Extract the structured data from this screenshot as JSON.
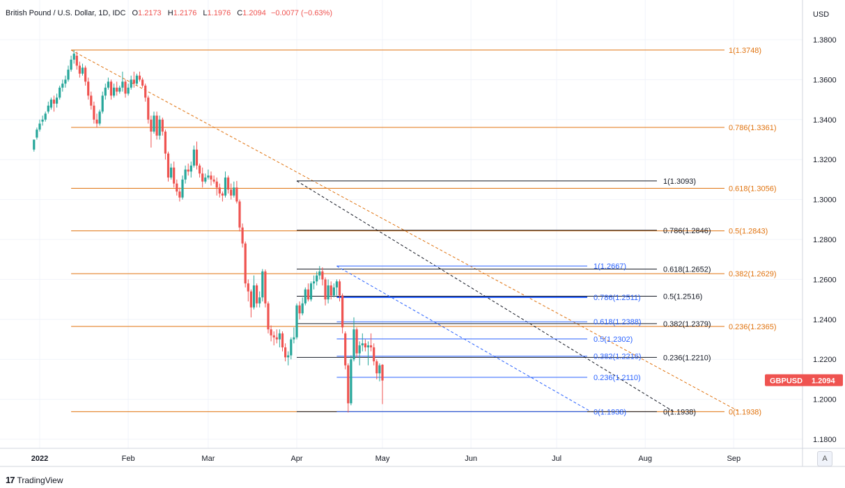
{
  "legend": {
    "symbol": "British Pound / U.S. Dollar, 1D, IDC",
    "o_label": "O",
    "o_value": "1.2173",
    "h_label": "H",
    "h_value": "1.2176",
    "l_label": "L",
    "l_value": "1.1976",
    "c_label": "C",
    "c_value": "1.2094",
    "change": "−0.0077 (−0.63%)"
  },
  "currency": "USD",
  "price_tag": {
    "symbol": "GBPUSD",
    "value": "1.2094"
  },
  "brand": "TradingView",
  "auto_button": "A",
  "colors": {
    "up": "#26a69a",
    "down": "#ef5350",
    "fib_orange": "#e0730f",
    "fib_blue": "#2962ff",
    "fib_black": "#131722",
    "tag": "#ef5350"
  },
  "chart_data": {
    "type": "candlestick",
    "ylim": [
      1.175,
      1.39
    ],
    "y_ticks": [
      "1.3800",
      "1.3600",
      "1.3400",
      "1.3200",
      "1.3000",
      "1.2800",
      "1.2600",
      "1.2400",
      "1.2200",
      "1.2000",
      "1.1800"
    ],
    "x_ticks": [
      {
        "label": "2022",
        "day": 3
      },
      {
        "label": "Feb",
        "day": 34
      },
      {
        "label": "Mar",
        "day": 62
      },
      {
        "label": "Apr",
        "day": 93
      },
      {
        "label": "May",
        "day": 123
      },
      {
        "label": "Jun",
        "day": 154
      },
      {
        "label": "Jul",
        "day": 184
      },
      {
        "label": "Aug",
        "day": 215
      },
      {
        "label": "Sep",
        "day": 246
      }
    ],
    "candles": [
      {
        "d": 1,
        "o": 1.325,
        "h": 1.328,
        "l": 1.324,
        "c": 1.33
      },
      {
        "d": 2,
        "o": 1.331,
        "h": 1.336,
        "l": 1.33,
        "c": 1.335
      },
      {
        "d": 3,
        "o": 1.335,
        "h": 1.34,
        "l": 1.334,
        "c": 1.338
      },
      {
        "d": 4,
        "o": 1.339,
        "h": 1.342,
        "l": 1.337,
        "c": 1.34
      },
      {
        "d": 5,
        "o": 1.34,
        "h": 1.344,
        "l": 1.339,
        "c": 1.343
      },
      {
        "d": 6,
        "o": 1.344,
        "h": 1.349,
        "l": 1.343,
        "c": 1.347
      },
      {
        "d": 7,
        "o": 1.346,
        "h": 1.351,
        "l": 1.345,
        "c": 1.35
      },
      {
        "d": 8,
        "o": 1.35,
        "h": 1.352,
        "l": 1.344,
        "c": 1.348
      },
      {
        "d": 9,
        "o": 1.348,
        "h": 1.353,
        "l": 1.346,
        "c": 1.351
      },
      {
        "d": 10,
        "o": 1.351,
        "h": 1.357,
        "l": 1.35,
        "c": 1.356
      },
      {
        "d": 11,
        "o": 1.356,
        "h": 1.36,
        "l": 1.354,
        "c": 1.358
      },
      {
        "d": 12,
        "o": 1.358,
        "h": 1.362,
        "l": 1.356,
        "c": 1.36
      },
      {
        "d": 13,
        "o": 1.36,
        "h": 1.367,
        "l": 1.359,
        "c": 1.365
      },
      {
        "d": 14,
        "o": 1.365,
        "h": 1.372,
        "l": 1.364,
        "c": 1.37
      },
      {
        "d": 15,
        "o": 1.37,
        "h": 1.3748,
        "l": 1.368,
        "c": 1.373
      },
      {
        "d": 16,
        "o": 1.372,
        "h": 1.374,
        "l": 1.365,
        "c": 1.367
      },
      {
        "d": 17,
        "o": 1.367,
        "h": 1.369,
        "l": 1.361,
        "c": 1.363
      },
      {
        "d": 18,
        "o": 1.363,
        "h": 1.368,
        "l": 1.362,
        "c": 1.366
      },
      {
        "d": 19,
        "o": 1.366,
        "h": 1.367,
        "l": 1.357,
        "c": 1.359
      },
      {
        "d": 20,
        "o": 1.359,
        "h": 1.361,
        "l": 1.35,
        "c": 1.352
      },
      {
        "d": 21,
        "o": 1.352,
        "h": 1.354,
        "l": 1.345,
        "c": 1.347
      },
      {
        "d": 22,
        "o": 1.347,
        "h": 1.349,
        "l": 1.338,
        "c": 1.34
      },
      {
        "d": 23,
        "o": 1.34,
        "h": 1.343,
        "l": 1.336,
        "c": 1.338
      },
      {
        "d": 24,
        "o": 1.338,
        "h": 1.345,
        "l": 1.337,
        "c": 1.344
      },
      {
        "d": 25,
        "o": 1.344,
        "h": 1.354,
        "l": 1.343,
        "c": 1.352
      },
      {
        "d": 26,
        "o": 1.352,
        "h": 1.358,
        "l": 1.35,
        "c": 1.356
      },
      {
        "d": 27,
        "o": 1.356,
        "h": 1.361,
        "l": 1.355,
        "c": 1.359
      },
      {
        "d": 28,
        "o": 1.359,
        "h": 1.36,
        "l": 1.35,
        "c": 1.352
      },
      {
        "d": 29,
        "o": 1.352,
        "h": 1.358,
        "l": 1.351,
        "c": 1.356
      },
      {
        "d": 30,
        "o": 1.356,
        "h": 1.359,
        "l": 1.352,
        "c": 1.354
      },
      {
        "d": 31,
        "o": 1.354,
        "h": 1.357,
        "l": 1.353,
        "c": 1.356
      },
      {
        "d": 32,
        "o": 1.356,
        "h": 1.364,
        "l": 1.354,
        "c": 1.359
      },
      {
        "d": 33,
        "o": 1.359,
        "h": 1.36,
        "l": 1.351,
        "c": 1.353
      },
      {
        "d": 34,
        "o": 1.353,
        "h": 1.358,
        "l": 1.352,
        "c": 1.356
      },
      {
        "d": 35,
        "o": 1.356,
        "h": 1.362,
        "l": 1.355,
        "c": 1.36
      },
      {
        "d": 36,
        "o": 1.36,
        "h": 1.364,
        "l": 1.356,
        "c": 1.358
      },
      {
        "d": 37,
        "o": 1.358,
        "h": 1.363,
        "l": 1.357,
        "c": 1.362
      },
      {
        "d": 38,
        "o": 1.362,
        "h": 1.364,
        "l": 1.359,
        "c": 1.36
      },
      {
        "d": 39,
        "o": 1.36,
        "h": 1.361,
        "l": 1.356,
        "c": 1.357
      },
      {
        "d": 40,
        "o": 1.357,
        "h": 1.358,
        "l": 1.349,
        "c": 1.351
      },
      {
        "d": 41,
        "o": 1.351,
        "h": 1.352,
        "l": 1.338,
        "c": 1.34
      },
      {
        "d": 42,
        "o": 1.34,
        "h": 1.342,
        "l": 1.326,
        "c": 1.334
      },
      {
        "d": 43,
        "o": 1.334,
        "h": 1.344,
        "l": 1.333,
        "c": 1.342
      },
      {
        "d": 44,
        "o": 1.342,
        "h": 1.344,
        "l": 1.33,
        "c": 1.332
      },
      {
        "d": 45,
        "o": 1.332,
        "h": 1.342,
        "l": 1.33,
        "c": 1.34
      },
      {
        "d": 46,
        "o": 1.34,
        "h": 1.341,
        "l": 1.332,
        "c": 1.334
      },
      {
        "d": 47,
        "o": 1.334,
        "h": 1.335,
        "l": 1.32,
        "c": 1.323
      },
      {
        "d": 48,
        "o": 1.323,
        "h": 1.324,
        "l": 1.309,
        "c": 1.311
      },
      {
        "d": 49,
        "o": 1.311,
        "h": 1.318,
        "l": 1.31,
        "c": 1.316
      },
      {
        "d": 50,
        "o": 1.316,
        "h": 1.319,
        "l": 1.306,
        "c": 1.308
      },
      {
        "d": 51,
        "o": 1.308,
        "h": 1.31,
        "l": 1.302,
        "c": 1.304
      },
      {
        "d": 52,
        "o": 1.304,
        "h": 1.306,
        "l": 1.299,
        "c": 1.301
      },
      {
        "d": 53,
        "o": 1.301,
        "h": 1.312,
        "l": 1.3,
        "c": 1.31
      },
      {
        "d": 54,
        "o": 1.31,
        "h": 1.317,
        "l": 1.308,
        "c": 1.315
      },
      {
        "d": 55,
        "o": 1.315,
        "h": 1.318,
        "l": 1.312,
        "c": 1.314
      },
      {
        "d": 56,
        "o": 1.314,
        "h": 1.319,
        "l": 1.311,
        "c": 1.317
      },
      {
        "d": 57,
        "o": 1.317,
        "h": 1.327,
        "l": 1.316,
        "c": 1.325
      },
      {
        "d": 58,
        "o": 1.325,
        "h": 1.329,
        "l": 1.315,
        "c": 1.317
      },
      {
        "d": 59,
        "o": 1.317,
        "h": 1.318,
        "l": 1.311,
        "c": 1.313
      },
      {
        "d": 60,
        "o": 1.313,
        "h": 1.316,
        "l": 1.306,
        "c": 1.309
      },
      {
        "d": 61,
        "o": 1.309,
        "h": 1.313,
        "l": 1.308,
        "c": 1.311
      },
      {
        "d": 62,
        "o": 1.311,
        "h": 1.315,
        "l": 1.31,
        "c": 1.312
      },
      {
        "d": 63,
        "o": 1.312,
        "h": 1.314,
        "l": 1.307,
        "c": 1.31
      },
      {
        "d": 64,
        "o": 1.31,
        "h": 1.312,
        "l": 1.308,
        "c": 1.309
      },
      {
        "d": 65,
        "o": 1.309,
        "h": 1.311,
        "l": 1.302,
        "c": 1.306
      },
      {
        "d": 66,
        "o": 1.306,
        "h": 1.308,
        "l": 1.301,
        "c": 1.303
      },
      {
        "d": 67,
        "o": 1.303,
        "h": 1.304,
        "l": 1.299,
        "c": 1.302
      },
      {
        "d": 68,
        "o": 1.302,
        "h": 1.314,
        "l": 1.301,
        "c": 1.311
      },
      {
        "d": 69,
        "o": 1.311,
        "h": 1.312,
        "l": 1.303,
        "c": 1.305
      },
      {
        "d": 70,
        "o": 1.305,
        "h": 1.308,
        "l": 1.3,
        "c": 1.302
      },
      {
        "d": 71,
        "o": 1.302,
        "h": 1.309,
        "l": 1.301,
        "c": 1.306
      },
      {
        "d": 72,
        "o": 1.306,
        "h": 1.3093,
        "l": 1.298,
        "c": 1.299
      },
      {
        "d": 73,
        "o": 1.299,
        "h": 1.3,
        "l": 1.284,
        "c": 1.286
      },
      {
        "d": 74,
        "o": 1.286,
        "h": 1.288,
        "l": 1.276,
        "c": 1.278
      },
      {
        "d": 75,
        "o": 1.278,
        "h": 1.279,
        "l": 1.256,
        "c": 1.258
      },
      {
        "d": 76,
        "o": 1.258,
        "h": 1.26,
        "l": 1.249,
        "c": 1.254
      },
      {
        "d": 77,
        "o": 1.254,
        "h": 1.255,
        "l": 1.241,
        "c": 1.246
      },
      {
        "d": 78,
        "o": 1.246,
        "h": 1.262,
        "l": 1.245,
        "c": 1.257
      },
      {
        "d": 79,
        "o": 1.257,
        "h": 1.258,
        "l": 1.246,
        "c": 1.248
      },
      {
        "d": 80,
        "o": 1.248,
        "h": 1.254,
        "l": 1.246,
        "c": 1.251
      },
      {
        "d": 81,
        "o": 1.251,
        "h": 1.2652,
        "l": 1.249,
        "c": 1.264
      },
      {
        "d": 82,
        "o": 1.264,
        "h": 1.265,
        "l": 1.246,
        "c": 1.248
      },
      {
        "d": 83,
        "o": 1.248,
        "h": 1.249,
        "l": 1.233,
        "c": 1.235
      },
      {
        "d": 84,
        "o": 1.235,
        "h": 1.237,
        "l": 1.229,
        "c": 1.232
      },
      {
        "d": 85,
        "o": 1.232,
        "h": 1.234,
        "l": 1.227,
        "c": 1.231
      },
      {
        "d": 86,
        "o": 1.231,
        "h": 1.235,
        "l": 1.228,
        "c": 1.23
      },
      {
        "d": 87,
        "o": 1.23,
        "h": 1.235,
        "l": 1.226,
        "c": 1.233
      },
      {
        "d": 88,
        "o": 1.233,
        "h": 1.234,
        "l": 1.224,
        "c": 1.226
      },
      {
        "d": 89,
        "o": 1.226,
        "h": 1.228,
        "l": 1.219,
        "c": 1.221
      },
      {
        "d": 90,
        "o": 1.221,
        "h": 1.224,
        "l": 1.217,
        "c": 1.222
      },
      {
        "d": 91,
        "o": 1.222,
        "h": 1.231,
        "l": 1.22,
        "c": 1.23
      },
      {
        "d": 92,
        "o": 1.23,
        "h": 1.236,
        "l": 1.228,
        "c": 1.231
      },
      {
        "d": 93,
        "o": 1.231,
        "h": 1.248,
        "l": 1.23,
        "c": 1.247
      },
      {
        "d": 94,
        "o": 1.247,
        "h": 1.249,
        "l": 1.24,
        "c": 1.243
      },
      {
        "d": 95,
        "o": 1.243,
        "h": 1.251,
        "l": 1.242,
        "c": 1.248
      },
      {
        "d": 96,
        "o": 1.248,
        "h": 1.256,
        "l": 1.247,
        "c": 1.255
      },
      {
        "d": 97,
        "o": 1.255,
        "h": 1.258,
        "l": 1.249,
        "c": 1.25
      },
      {
        "d": 98,
        "o": 1.25,
        "h": 1.259,
        "l": 1.249,
        "c": 1.258
      },
      {
        "d": 99,
        "o": 1.258,
        "h": 1.262,
        "l": 1.255,
        "c": 1.259
      },
      {
        "d": 100,
        "o": 1.259,
        "h": 1.264,
        "l": 1.257,
        "c": 1.262
      },
      {
        "d": 101,
        "o": 1.262,
        "h": 1.2667,
        "l": 1.26,
        "c": 1.264
      },
      {
        "d": 102,
        "o": 1.264,
        "h": 1.266,
        "l": 1.257,
        "c": 1.26
      },
      {
        "d": 103,
        "o": 1.26,
        "h": 1.261,
        "l": 1.247,
        "c": 1.25
      },
      {
        "d": 104,
        "o": 1.25,
        "h": 1.26,
        "l": 1.248,
        "c": 1.257
      },
      {
        "d": 105,
        "o": 1.257,
        "h": 1.259,
        "l": 1.25,
        "c": 1.252
      },
      {
        "d": 106,
        "o": 1.252,
        "h": 1.258,
        "l": 1.251,
        "c": 1.256
      },
      {
        "d": 107,
        "o": 1.256,
        "h": 1.26,
        "l": 1.252,
        "c": 1.259
      },
      {
        "d": 108,
        "o": 1.259,
        "h": 1.26,
        "l": 1.249,
        "c": 1.252
      },
      {
        "d": 109,
        "o": 1.252,
        "h": 1.253,
        "l": 1.233,
        "c": 1.236
      },
      {
        "d": 110,
        "o": 1.233,
        "h": 1.234,
        "l": 1.215,
        "c": 1.217
      },
      {
        "d": 111,
        "o": 1.217,
        "h": 1.218,
        "l": 1.1934,
        "c": 1.198
      },
      {
        "d": 112,
        "o": 1.198,
        "h": 1.222,
        "l": 1.197,
        "c": 1.22
      },
      {
        "d": 113,
        "o": 1.22,
        "h": 1.241,
        "l": 1.219,
        "c": 1.235
      },
      {
        "d": 114,
        "o": 1.235,
        "h": 1.236,
        "l": 1.221,
        "c": 1.223
      },
      {
        "d": 115,
        "o": 1.223,
        "h": 1.229,
        "l": 1.217,
        "c": 1.227
      },
      {
        "d": 116,
        "o": 1.227,
        "h": 1.233,
        "l": 1.224,
        "c": 1.228
      },
      {
        "d": 117,
        "o": 1.228,
        "h": 1.23,
        "l": 1.224,
        "c": 1.226
      },
      {
        "d": 118,
        "o": 1.226,
        "h": 1.229,
        "l": 1.217,
        "c": 1.227
      },
      {
        "d": 119,
        "o": 1.227,
        "h": 1.233,
        "l": 1.224,
        "c": 1.226
      },
      {
        "d": 120,
        "o": 1.226,
        "h": 1.228,
        "l": 1.217,
        "c": 1.219
      },
      {
        "d": 121,
        "o": 1.219,
        "h": 1.22,
        "l": 1.21,
        "c": 1.213
      },
      {
        "d": 122,
        "o": 1.213,
        "h": 1.218,
        "l": 1.209,
        "c": 1.217
      },
      {
        "d": 123,
        "o": 1.2173,
        "h": 1.2176,
        "l": 1.1976,
        "c": 1.2094
      }
    ],
    "fib_orange": {
      "anchor_start_day": 14,
      "anchor_end_day": 248,
      "levels": [
        {
          "label": "1(1.3748)",
          "price": 1.3748
        },
        {
          "label": "0.786(1.3361)",
          "price": 1.3361
        },
        {
          "label": "0.618(1.3056)",
          "price": 1.3056
        },
        {
          "label": "0.5(1.2843)",
          "price": 1.2843
        },
        {
          "label": "0.382(1.2629)",
          "price": 1.2629
        },
        {
          "label": "0.236(1.2365)",
          "price": 1.2365
        },
        {
          "label": "0(1.1938)",
          "price": 1.1938
        }
      ]
    },
    "fib_black": {
      "anchor_start_day": 93,
      "anchor_end_day": 225,
      "levels": [
        {
          "label": "1(1.3093)",
          "price": 1.3093
        },
        {
          "label": "0.786(1.2846)",
          "price": 1.2846
        },
        {
          "label": "0.618(1.2652)",
          "price": 1.2652
        },
        {
          "label": "0.5(1.2516)",
          "price": 1.2516
        },
        {
          "label": "0.382(1.2379)",
          "price": 1.2379
        },
        {
          "label": "0.236(1.2210)",
          "price": 1.221
        },
        {
          "label": "0(1.1938)",
          "price": 1.1938
        }
      ]
    },
    "fib_blue": {
      "anchor_start_day": 107,
      "anchor_end_day": 196,
      "levels": [
        {
          "label": "1(1.2667)",
          "price": 1.2667
        },
        {
          "label": "0.786(1.2511)",
          "price": 1.2511
        },
        {
          "label": "0.618(1.2388)",
          "price": 1.2388
        },
        {
          "label": "0.5(1.2302)",
          "price": 1.2302
        },
        {
          "label": "0.382(1.2216)",
          "price": 1.2216
        },
        {
          "label": "0.236(1.2110)",
          "price": 1.211
        },
        {
          "label": "0(1.1938)",
          "price": 1.1938
        }
      ]
    }
  }
}
